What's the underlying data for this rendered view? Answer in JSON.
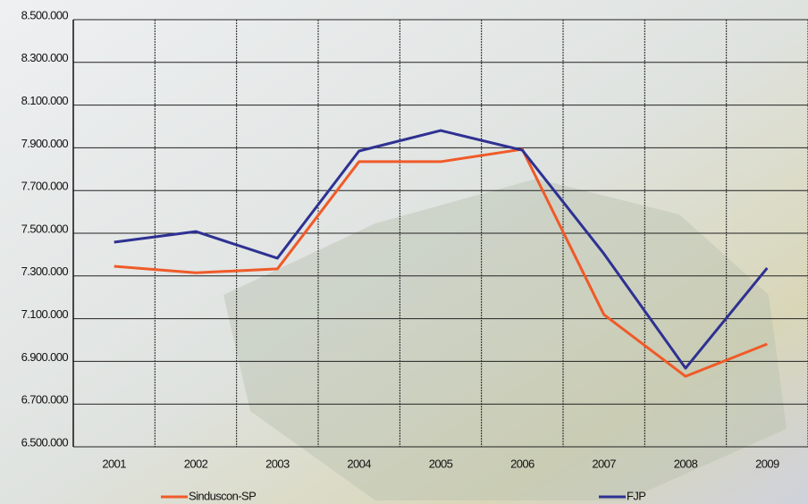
{
  "chart_data": {
    "type": "line",
    "categories": [
      "2001",
      "2002",
      "2003",
      "2004",
      "2005",
      "2006",
      "2007",
      "2008",
      "2009"
    ],
    "series": [
      {
        "name": "Sinduscon-SP",
        "color": "#f05a28",
        "values": [
          7345000,
          7315000,
          7333000,
          7835000,
          7835000,
          7893000,
          7119000,
          6830000,
          6981000
        ]
      },
      {
        "name": "FJP",
        "color": "#2e3192",
        "values": [
          7458000,
          7508000,
          7383000,
          7885000,
          7981000,
          7889000,
          7404000,
          6868000,
          7337000
        ]
      }
    ],
    "ylim": [
      6500000,
      8500000
    ],
    "yticks": [
      {
        "value": 6500000,
        "label": "6.500.000"
      },
      {
        "value": 6700000,
        "label": "6.700.000"
      },
      {
        "value": 6900000,
        "label": "6.900.000"
      },
      {
        "value": 7100000,
        "label": "7.100.000"
      },
      {
        "value": 7300000,
        "label": "7.300.000"
      },
      {
        "value": 7500000,
        "label": "7.500.000"
      },
      {
        "value": 7700000,
        "label": "7.700.000"
      },
      {
        "value": 7900000,
        "label": "7.900.000"
      },
      {
        "value": 8100000,
        "label": "8.100.000"
      },
      {
        "value": 8300000,
        "label": "8.300.000"
      },
      {
        "value": 8500000,
        "label": "8.500.000"
      }
    ],
    "grid": true
  }
}
